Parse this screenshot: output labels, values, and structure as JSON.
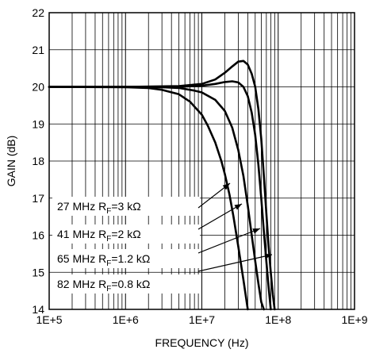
{
  "chart_data": {
    "type": "line",
    "xlabel": "FREQUENCY (Hz)",
    "ylabel": "GAIN (dB)",
    "xscale": "log",
    "xlim": [
      100000,
      1000000000
    ],
    "ylim": [
      14,
      22
    ],
    "grid": "on",
    "legend": "none",
    "x_ticks": [
      "1E+5",
      "1E+6",
      "1E+7",
      "1E+8",
      "1E+9"
    ],
    "y_ticks": [
      "14",
      "15",
      "16",
      "17",
      "18",
      "19",
      "20",
      "21",
      "22"
    ],
    "series": [
      {
        "x": [
          100000,
          1000000,
          5000000,
          10000000,
          15000000,
          20000000,
          25000000,
          30000000,
          35000000,
          40000000,
          45000000,
          50000000,
          55000000,
          60000000,
          65000000,
          70000000,
          75000000,
          80000000,
          85000000,
          90000000
        ],
        "y": [
          20.0,
          20.0,
          20.02,
          20.08,
          20.2,
          20.38,
          20.55,
          20.68,
          20.7,
          20.6,
          20.35,
          20.0,
          19.4,
          18.6,
          17.6,
          16.6,
          15.7,
          15.0,
          14.4,
          14.0
        ]
      },
      {
        "x": [
          100000,
          1000000,
          5000000,
          10000000,
          15000000,
          20000000,
          25000000,
          30000000,
          35000000,
          40000000,
          45000000,
          50000000,
          55000000,
          60000000,
          65000000,
          70000000,
          75000000,
          80000000
        ],
        "y": [
          20.0,
          20.0,
          20.0,
          20.03,
          20.08,
          20.13,
          20.15,
          20.12,
          20.0,
          19.75,
          19.3,
          18.7,
          17.9,
          17.0,
          16.1,
          15.3,
          14.6,
          14.0
        ]
      },
      {
        "x": [
          100000,
          1000000,
          3000000,
          5000000,
          8000000,
          10000000,
          15000000,
          20000000,
          25000000,
          30000000,
          35000000,
          40000000,
          45000000,
          50000000,
          55000000,
          60000000,
          65000000
        ],
        "y": [
          20.0,
          20.0,
          19.99,
          19.97,
          19.9,
          19.85,
          19.65,
          19.35,
          18.9,
          18.3,
          17.6,
          16.8,
          16.0,
          15.3,
          14.7,
          14.2,
          14.0
        ]
      },
      {
        "x": [
          100000,
          1000000,
          2000000,
          3000000,
          5000000,
          7000000,
          10000000,
          12000000,
          15000000,
          18000000,
          20000000,
          23000000,
          26000000,
          30000000,
          35000000,
          40000000
        ],
        "y": [
          20.0,
          19.99,
          19.97,
          19.92,
          19.8,
          19.6,
          19.25,
          18.95,
          18.5,
          18.0,
          17.65,
          17.1,
          16.5,
          15.7,
          14.8,
          14.0
        ]
      }
    ],
    "annotations": [
      {
        "main": "27 MHz R",
        "sub": "F",
        "rest": "=3 kΩ"
      },
      {
        "main": "41 MHz R",
        "sub": "F",
        "rest": "=2 kΩ"
      },
      {
        "main": "65 MHz R",
        "sub": "F",
        "rest": "=1.2 kΩ"
      },
      {
        "main": "82 MHz R",
        "sub": "F",
        "rest": "=0.8 kΩ"
      }
    ],
    "colors": {
      "curve": "#000000",
      "grid": "#000000",
      "background": "#ffffff"
    }
  }
}
